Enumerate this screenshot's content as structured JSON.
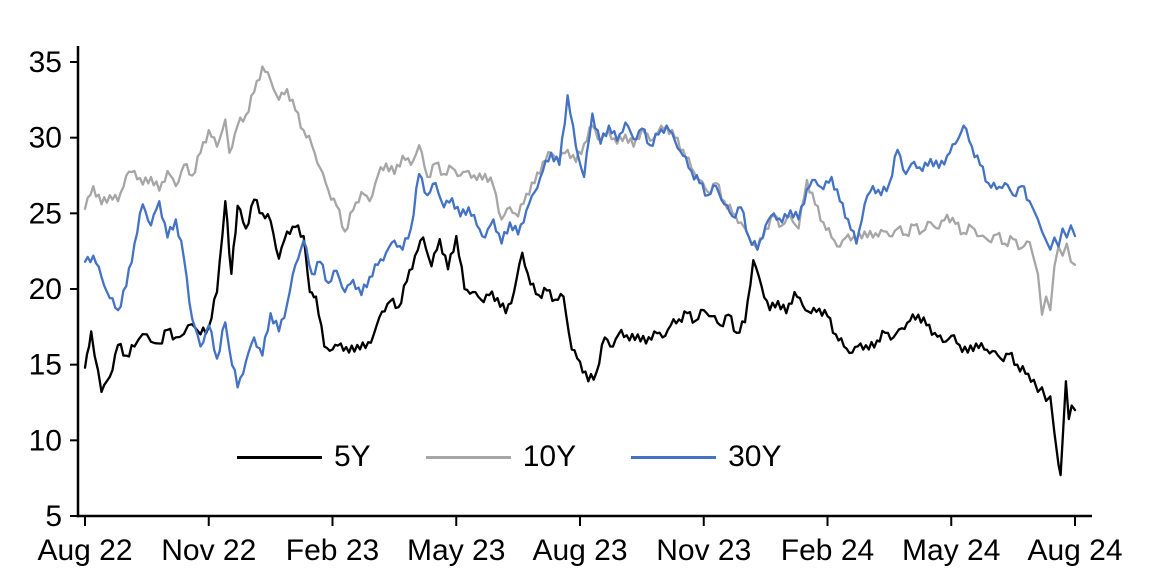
{
  "chart_data": {
    "type": "line",
    "title": "",
    "xlabel": "",
    "ylabel": "",
    "grid": false,
    "legend_position": "inside-bottom-center",
    "axis_color": "#000000",
    "xlim": [
      0,
      24
    ],
    "ylim": [
      5,
      35
    ],
    "y_ticks": [
      5,
      10,
      15,
      20,
      25,
      30,
      35
    ],
    "x_tick_positions": [
      0,
      3,
      6,
      9,
      12,
      15,
      18,
      21,
      24
    ],
    "x_tick_labels": [
      "Aug 22",
      "Nov 22",
      "Feb 23",
      "May 23",
      "Aug 23",
      "Nov 23",
      "Feb 24",
      "May 24",
      "Aug 24"
    ],
    "x_unit": "months_since_Aug_2022",
    "series": [
      {
        "name": "5Y",
        "color": "#000000",
        "x": [
          0,
          0.15,
          0.4,
          0.6,
          0.8,
          1.0,
          1.2,
          1.5,
          1.8,
          2.0,
          2.2,
          2.5,
          2.8,
          3.0,
          3.2,
          3.4,
          3.55,
          3.7,
          3.9,
          4.1,
          4.3,
          4.5,
          4.7,
          4.9,
          5.1,
          5.3,
          5.45,
          5.6,
          5.8,
          6.0,
          6.2,
          6.4,
          6.6,
          6.8,
          7.0,
          7.2,
          7.4,
          7.6,
          7.8,
          8.0,
          8.2,
          8.4,
          8.6,
          8.8,
          9.0,
          9.2,
          9.4,
          9.6,
          9.8,
          10.0,
          10.2,
          10.4,
          10.6,
          10.8,
          11.0,
          11.2,
          11.4,
          11.6,
          11.8,
          12.0,
          12.2,
          12.4,
          12.6,
          12.8,
          13.0,
          13.2,
          13.4,
          13.6,
          13.8,
          14.0,
          14.2,
          14.4,
          14.6,
          14.8,
          15.0,
          15.2,
          15.4,
          15.6,
          15.8,
          16.0,
          16.2,
          16.4,
          16.6,
          16.8,
          17.0,
          17.2,
          17.4,
          17.6,
          17.8,
          18.0,
          18.2,
          18.4,
          18.6,
          18.8,
          19.0,
          19.2,
          19.4,
          19.6,
          19.8,
          20.0,
          20.2,
          20.4,
          20.6,
          20.8,
          21.0,
          21.2,
          21.4,
          21.6,
          21.8,
          22.0,
          22.2,
          22.4,
          22.6,
          22.8,
          23.0,
          23.1,
          23.2,
          23.3,
          23.4,
          23.5,
          23.6,
          23.65,
          23.7,
          23.78,
          23.85,
          23.92,
          24.0
        ],
        "y": [
          14.8,
          17.2,
          13.2,
          14.2,
          16.3,
          15.6,
          16.2,
          17.0,
          16.4,
          17.3,
          16.8,
          17.6,
          17.0,
          17.5,
          19.8,
          25.8,
          21.0,
          25.5,
          24.0,
          25.9,
          25.0,
          24.5,
          22.0,
          23.8,
          24.1,
          23.5,
          19.8,
          19.5,
          16.2,
          16.0,
          16.4,
          15.8,
          16.3,
          16.1,
          17.0,
          18.5,
          19.2,
          18.8,
          20.5,
          22.2,
          23.4,
          21.5,
          23.3,
          21.3,
          23.5,
          20.0,
          19.8,
          19.3,
          19.6,
          19.4,
          18.4,
          19.8,
          22.4,
          20.3,
          19.6,
          19.9,
          19.3,
          19.5,
          16.0,
          15.2,
          13.9,
          14.5,
          16.8,
          16.2,
          17.3,
          16.6,
          17.0,
          16.4,
          17.2,
          16.8,
          17.6,
          18.0,
          18.4,
          17.9,
          18.6,
          18.2,
          17.6,
          18.3,
          17.1,
          17.8,
          21.9,
          20.2,
          18.6,
          19.2,
          18.4,
          19.8,
          18.9,
          18.4,
          18.7,
          18.2,
          17.0,
          16.2,
          15.8,
          16.4,
          16.0,
          16.6,
          17.1,
          16.8,
          17.4,
          17.9,
          18.3,
          17.6,
          17.1,
          16.5,
          16.9,
          16.3,
          15.8,
          16.4,
          16.0,
          15.9,
          15.4,
          15.7,
          15.0,
          14.4,
          14.0,
          13.2,
          13.5,
          12.6,
          12.9,
          10.5,
          8.4,
          7.7,
          10.0,
          13.9,
          11.4,
          12.3,
          12.0
        ]
      },
      {
        "name": "10Y",
        "color": "#A6A6A6",
        "x": [
          0,
          0.2,
          0.4,
          0.6,
          0.8,
          1.0,
          1.2,
          1.4,
          1.6,
          1.8,
          2.0,
          2.2,
          2.4,
          2.6,
          2.8,
          3.0,
          3.2,
          3.4,
          3.5,
          3.7,
          3.9,
          4.1,
          4.3,
          4.5,
          4.7,
          4.9,
          5.1,
          5.3,
          5.5,
          5.7,
          5.9,
          6.1,
          6.3,
          6.5,
          6.7,
          6.9,
          7.1,
          7.3,
          7.5,
          7.7,
          7.9,
          8.1,
          8.3,
          8.5,
          8.7,
          8.9,
          9.1,
          9.3,
          9.5,
          9.7,
          9.9,
          10.1,
          10.3,
          10.5,
          10.7,
          10.9,
          11.1,
          11.3,
          11.5,
          11.7,
          11.9,
          12.1,
          12.3,
          12.5,
          12.7,
          12.9,
          13.1,
          13.3,
          13.5,
          13.7,
          13.9,
          14.1,
          14.3,
          14.5,
          14.7,
          14.9,
          15.1,
          15.3,
          15.5,
          15.7,
          15.9,
          16.1,
          16.3,
          16.5,
          16.7,
          16.9,
          17.1,
          17.3,
          17.5,
          17.7,
          17.9,
          18.1,
          18.3,
          18.5,
          18.7,
          18.9,
          19.1,
          19.3,
          19.5,
          19.7,
          19.9,
          20.1,
          20.3,
          20.5,
          20.7,
          20.9,
          21.1,
          21.3,
          21.5,
          21.7,
          21.9,
          22.1,
          22.3,
          22.5,
          22.7,
          22.9,
          23.0,
          23.1,
          23.2,
          23.3,
          23.4,
          23.5,
          23.6,
          23.7,
          23.8,
          23.9,
          24.0
        ],
        "y": [
          25.3,
          26.8,
          25.6,
          26.2,
          25.8,
          27.5,
          27.8,
          26.9,
          27.4,
          26.5,
          27.8,
          26.8,
          28.2,
          27.5,
          29.0,
          30.5,
          29.4,
          31.2,
          29.0,
          30.8,
          31.5,
          33.0,
          34.7,
          33.8,
          32.5,
          33.2,
          31.8,
          30.5,
          29.5,
          28.0,
          26.5,
          25.5,
          23.8,
          25.2,
          26.4,
          25.8,
          27.5,
          28.3,
          27.6,
          28.8,
          28.2,
          29.5,
          27.4,
          28.3,
          27.6,
          28.0,
          27.5,
          27.8,
          27.2,
          27.6,
          26.8,
          24.6,
          25.4,
          24.8,
          26.3,
          27.0,
          28.4,
          29.0,
          28.6,
          29.2,
          28.4,
          29.6,
          30.8,
          29.8,
          30.4,
          29.6,
          30.2,
          29.4,
          30.6,
          29.8,
          30.4,
          30.8,
          30.0,
          29.2,
          28.0,
          27.2,
          26.4,
          27.0,
          25.8,
          25.0,
          24.4,
          23.4,
          22.6,
          24.0,
          24.8,
          24.2,
          24.8,
          24.0,
          27.2,
          25.6,
          24.4,
          23.4,
          22.8,
          23.6,
          23.2,
          23.8,
          23.4,
          23.9,
          23.5,
          24.0,
          23.6,
          24.2,
          23.8,
          24.4,
          24.0,
          24.9,
          24.3,
          23.7,
          24.1,
          23.5,
          23.2,
          23.6,
          23.0,
          23.3,
          22.7,
          23.1,
          22.0,
          21.0,
          18.3,
          19.5,
          18.6,
          21.5,
          22.8,
          22.2,
          23.0,
          21.8,
          21.6
        ]
      },
      {
        "name": "30Y",
        "color": "#4472C4",
        "x": [
          0,
          0.2,
          0.4,
          0.6,
          0.8,
          1.0,
          1.2,
          1.4,
          1.6,
          1.8,
          2.0,
          2.2,
          2.4,
          2.6,
          2.8,
          3.0,
          3.2,
          3.4,
          3.5,
          3.7,
          3.9,
          4.1,
          4.3,
          4.5,
          4.7,
          4.9,
          5.1,
          5.3,
          5.5,
          5.7,
          5.9,
          6.1,
          6.3,
          6.5,
          6.7,
          6.9,
          7.1,
          7.3,
          7.5,
          7.7,
          7.9,
          8.1,
          8.3,
          8.5,
          8.7,
          8.9,
          9.1,
          9.3,
          9.5,
          9.7,
          9.9,
          10.1,
          10.3,
          10.5,
          10.7,
          10.9,
          11.1,
          11.3,
          11.5,
          11.7,
          11.9,
          12.1,
          12.3,
          12.5,
          12.7,
          12.9,
          13.1,
          13.3,
          13.5,
          13.7,
          13.9,
          14.1,
          14.3,
          14.5,
          14.7,
          14.9,
          15.1,
          15.3,
          15.5,
          15.7,
          15.9,
          16.1,
          16.3,
          16.5,
          16.7,
          16.9,
          17.1,
          17.3,
          17.5,
          17.7,
          17.9,
          18.1,
          18.3,
          18.5,
          18.7,
          18.9,
          19.1,
          19.3,
          19.5,
          19.7,
          19.9,
          20.1,
          20.3,
          20.5,
          20.7,
          20.9,
          21.1,
          21.3,
          21.5,
          21.7,
          21.9,
          22.1,
          22.3,
          22.5,
          22.7,
          22.9,
          23.0,
          23.1,
          23.2,
          23.3,
          23.4,
          23.5,
          23.6,
          23.7,
          23.8,
          23.9,
          24.0
        ],
        "y": [
          21.8,
          22.2,
          20.8,
          19.4,
          18.6,
          20.2,
          23.0,
          25.6,
          24.2,
          25.8,
          23.4,
          24.6,
          22.0,
          18.0,
          16.2,
          17.6,
          15.4,
          17.8,
          16.0,
          13.5,
          15.2,
          16.8,
          15.6,
          18.4,
          17.2,
          19.0,
          21.6,
          23.2,
          21.0,
          21.8,
          20.4,
          21.2,
          19.8,
          20.6,
          19.6,
          20.8,
          21.6,
          22.4,
          23.2,
          22.6,
          24.0,
          27.6,
          26.2,
          27.0,
          25.4,
          26.0,
          24.8,
          25.4,
          24.2,
          23.4,
          24.6,
          23.0,
          24.4,
          23.6,
          25.2,
          26.4,
          27.8,
          29.0,
          28.2,
          32.8,
          29.4,
          27.4,
          31.6,
          29.6,
          30.8,
          29.8,
          31.0,
          29.9,
          30.6,
          29.5,
          30.2,
          30.8,
          29.8,
          28.8,
          27.8,
          27.0,
          26.2,
          26.8,
          25.6,
          24.8,
          25.4,
          23.4,
          22.6,
          24.2,
          25.0,
          24.4,
          25.2,
          24.6,
          26.6,
          27.2,
          26.6,
          27.4,
          25.8,
          24.6,
          23.0,
          25.6,
          26.8,
          26.2,
          27.0,
          29.2,
          27.6,
          28.4,
          27.8,
          28.6,
          28.0,
          28.8,
          29.6,
          30.8,
          29.4,
          28.2,
          27.0,
          26.6,
          27.0,
          26.2,
          26.8,
          25.8,
          25.2,
          24.6,
          23.8,
          23.2,
          22.6,
          23.4,
          22.8,
          24.0,
          23.4,
          24.2,
          23.5
        ]
      }
    ]
  }
}
